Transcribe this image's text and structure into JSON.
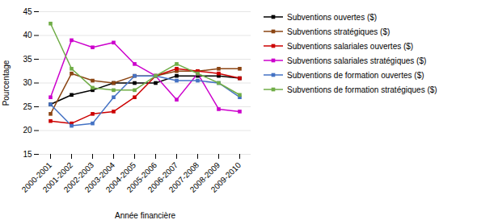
{
  "chart_data": {
    "type": "line",
    "categories": [
      "2000-2001",
      "2001-2002",
      "2002-2003",
      "2003-2004",
      "2004-2005",
      "2005-2006",
      "2006-2007",
      "2007-2008",
      "2008-2009",
      "2009-2010"
    ],
    "series": [
      {
        "name": "Subventions ouvertes ($)",
        "color": "#000000",
        "marker": "square",
        "values": [
          25.5,
          27.5,
          28.5,
          30.0,
          30.0,
          30.0,
          31.5,
          31.5,
          31.5,
          31.0
        ]
      },
      {
        "name": "Subventions stratégiques ($)",
        "color": "#8B4513",
        "marker": "square",
        "values": [
          23.5,
          32.0,
          30.5,
          30.0,
          31.5,
          31.5,
          32.5,
          32.5,
          33.0,
          33.0
        ]
      },
      {
        "name": "Subventions salariales ouvertes ($)",
        "color": "#CC0000",
        "marker": "square",
        "values": [
          22.0,
          21.5,
          23.5,
          24.0,
          27.0,
          31.5,
          33.0,
          32.5,
          32.0,
          31.0
        ]
      },
      {
        "name": "Subventions salariales stratégiques ($)",
        "color": "#CC00CC",
        "marker": "square",
        "values": [
          27.0,
          39.0,
          37.5,
          38.5,
          34.0,
          31.5,
          26.5,
          32.0,
          24.5,
          24.0
        ]
      },
      {
        "name": "Subventions de formation ouvertes ($)",
        "color": "#4472C4",
        "marker": "square",
        "values": [
          25.5,
          21.0,
          21.5,
          27.0,
          31.5,
          31.5,
          30.5,
          30.5,
          30.0,
          27.0
        ]
      },
      {
        "name": "Subventions de formation stratégiques ($)",
        "color": "#70AD47",
        "marker": "square",
        "values": [
          42.5,
          33.0,
          29.0,
          28.5,
          28.5,
          31.5,
          34.0,
          32.0,
          30.0,
          27.5
        ]
      }
    ],
    "xlabel": "Année financière",
    "ylabel": "Pourcentage",
    "ylim": [
      15,
      45
    ],
    "yticks": [
      15,
      20,
      25,
      30,
      35,
      40,
      45
    ],
    "grid": true,
    "legend": "right"
  }
}
